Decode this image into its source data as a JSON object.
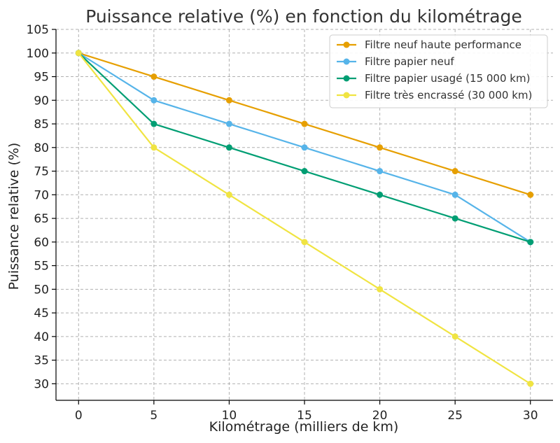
{
  "chart_data": {
    "type": "line",
    "title": "Puissance relative (%) en fonction du kilométrage",
    "xlabel": "Kilométrage (milliers de km)",
    "ylabel": "Puissance relative (%)",
    "x": [
      0,
      5,
      10,
      15,
      20,
      25,
      30
    ],
    "xticks": [
      "0",
      "5",
      "10",
      "15",
      "20",
      "25",
      "30"
    ],
    "yticks": [
      "30",
      "35",
      "40",
      "45",
      "50",
      "55",
      "60",
      "65",
      "70",
      "75",
      "80",
      "85",
      "90",
      "95",
      "100",
      "105"
    ],
    "xlim": [
      -1.5,
      31.5
    ],
    "ylim": [
      26.5,
      105
    ],
    "grid": true,
    "legend_position": "top-right",
    "series": [
      {
        "name": "Filtre neuf haute performance",
        "color": "#E69F00",
        "values": [
          100,
          95,
          90,
          85,
          80,
          75,
          70
        ]
      },
      {
        "name": "Filtre papier neuf",
        "color": "#56B4E9",
        "values": [
          100,
          90,
          85,
          80,
          75,
          70,
          60
        ]
      },
      {
        "name": "Filtre papier usagé (15 000 km)",
        "color": "#009E73",
        "values": [
          100,
          85,
          80,
          75,
          70,
          65,
          60
        ]
      },
      {
        "name": "Filtre très encrassé (30 000 km)",
        "color": "#F0E442",
        "values": [
          100,
          80,
          70,
          60,
          50,
          40,
          30
        ]
      }
    ]
  }
}
